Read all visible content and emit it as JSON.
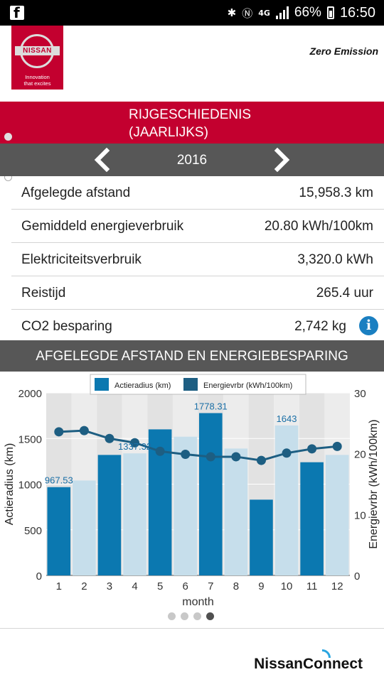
{
  "status_bar": {
    "battery": "66%",
    "time": "16:50",
    "network": "4G"
  },
  "header": {
    "brand": "NISSAN",
    "tagline_1": "Innovation",
    "tagline_2": "that excites",
    "zero_emission": "Zero Emission"
  },
  "title": {
    "line1": "RIJGESCHIEDENIS",
    "line2": "(JAARLIJKS)"
  },
  "year": "2016",
  "stats": [
    {
      "label": "Afgelegde afstand",
      "value": "15,958.3 km"
    },
    {
      "label": "Gemiddeld energieverbruik",
      "value": "20.80 kWh/100km"
    },
    {
      "label": "Elektriciteitsverbruik",
      "value": "3,320.0 kWh"
    },
    {
      "label": "Reistijd",
      "value": "265.4 uur"
    },
    {
      "label": "CO2 besparing",
      "value": "2,742 kg"
    }
  ],
  "chart_section_title": "AFGELEGDE AFSTAND EN ENERGIEBESPARING",
  "chart_data": {
    "type": "bar",
    "categories": [
      "1",
      "2",
      "3",
      "4",
      "5",
      "6",
      "7",
      "8",
      "9",
      "10",
      "11",
      "12"
    ],
    "xlabel": "month",
    "ylabel": "Actieradius (km)",
    "ylabel_right": "Energievrbr (kWh/100km)",
    "ylim": [
      0,
      2000
    ],
    "ylim_right": [
      0,
      30
    ],
    "yticks": [
      0,
      500,
      1000,
      1500,
      2000
    ],
    "yticks_right": [
      0,
      10,
      20,
      30
    ],
    "series": [
      {
        "name": "Actieradius (km)",
        "values": [
          967.53,
          1040,
          1320,
          1337.32,
          1600,
          1520,
          1778.31,
          1390,
          830,
          1643,
          1240,
          1320
        ]
      },
      {
        "name": "Energievrbr (kWh/100km)",
        "values": [
          23.6,
          23.8,
          22.5,
          21.8,
          20.4,
          19.9,
          19.5,
          19.5,
          18.9,
          20.1,
          20.8,
          21.2
        ]
      }
    ],
    "data_labels": [
      "967.53",
      "1337.32",
      "1778.31",
      "1643"
    ],
    "colors": {
      "dark_bar": "#0b78b0",
      "light_bar": "#c6deeb",
      "line": "#1d5e82"
    },
    "grid": true,
    "legend_position": "top"
  },
  "footer": {
    "brand_part1": "Nissan",
    "brand_part2": "Connect"
  }
}
